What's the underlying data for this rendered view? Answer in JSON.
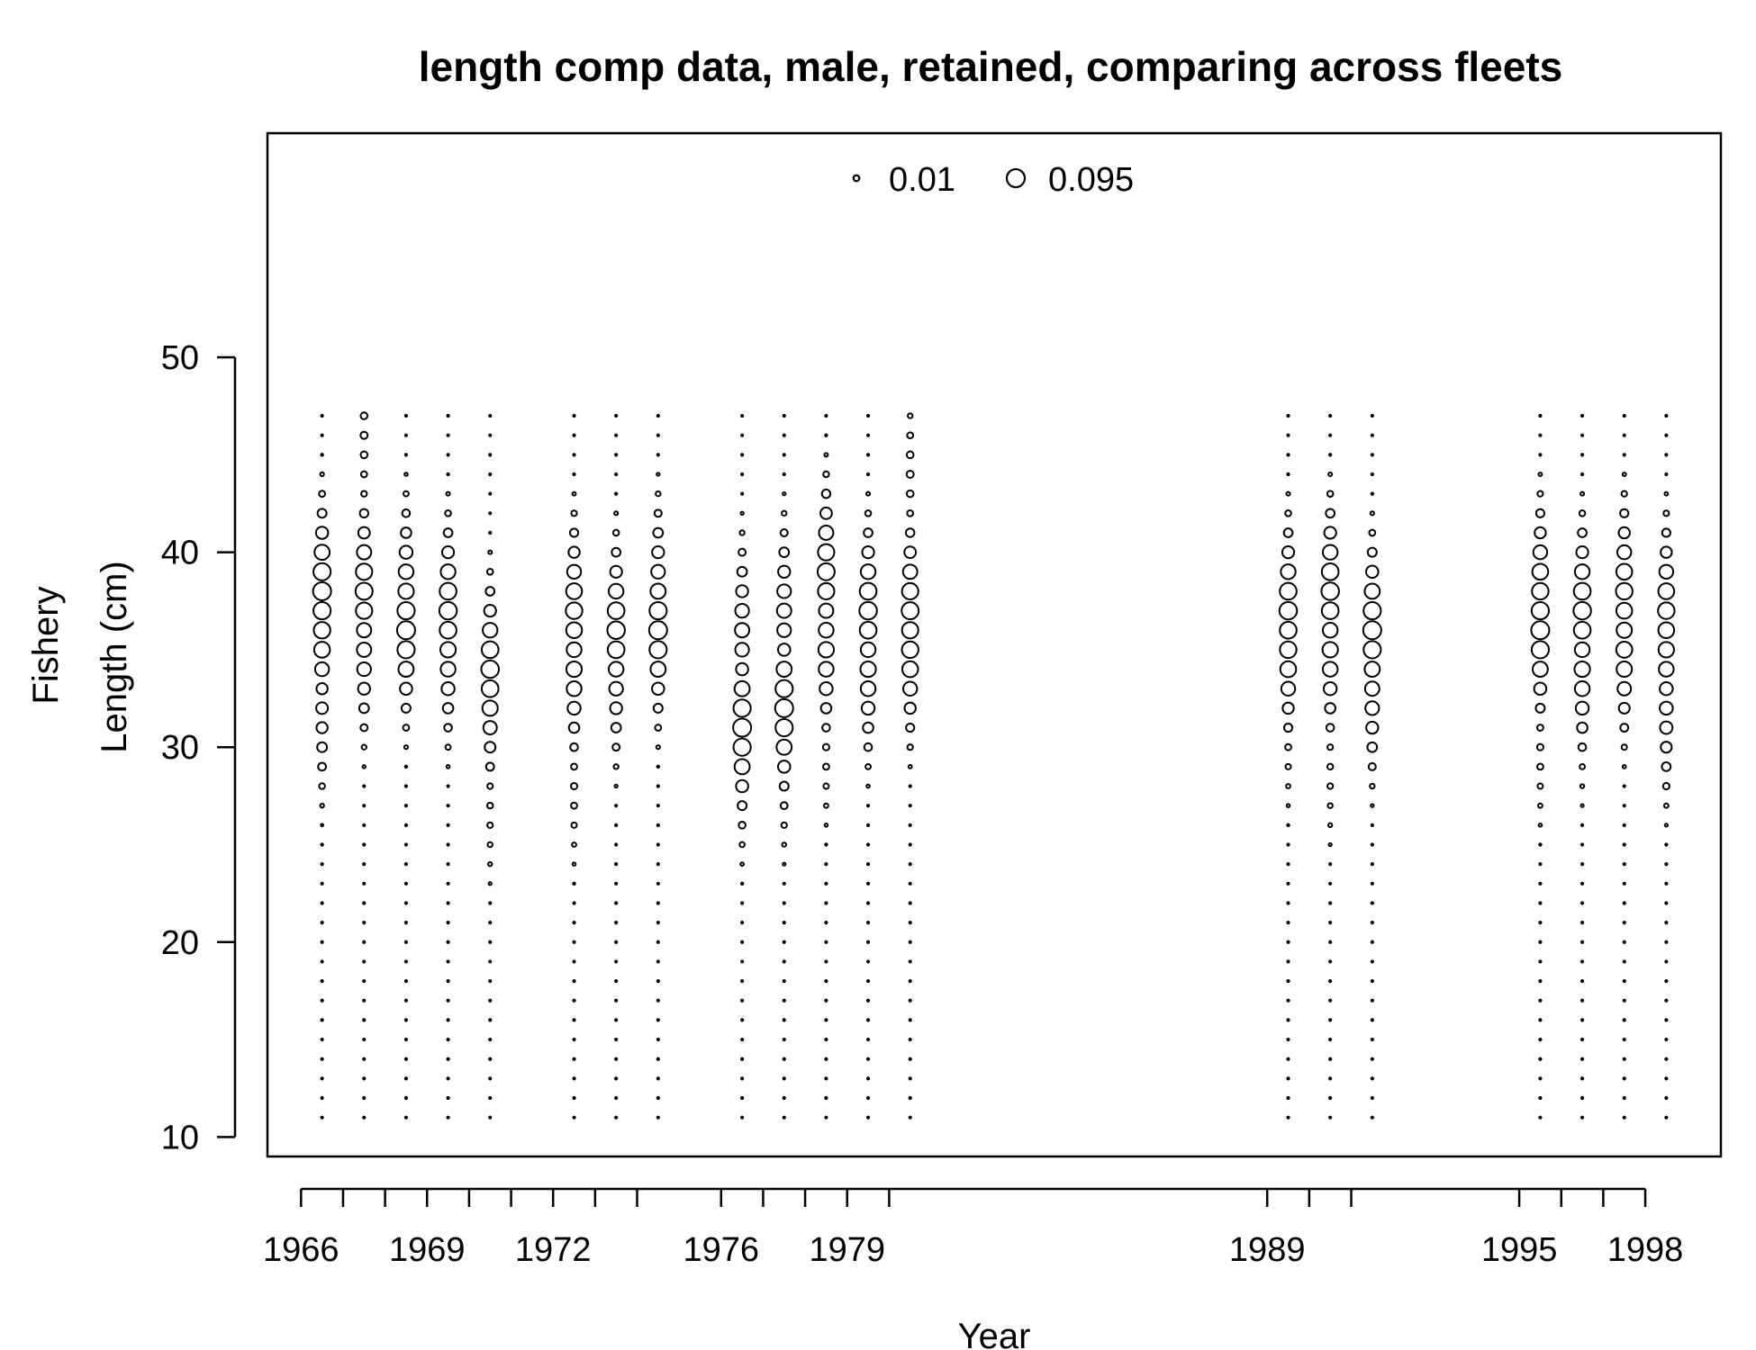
{
  "chart_data": {
    "type": "scatter",
    "subtype": "bubble",
    "title": "length comp data, male, retained, comparing across fleets",
    "xlabel": "Year",
    "ylabel_lines": [
      "Fishery",
      "Length (cm)"
    ],
    "xlim": [
      1965.2,
      1999.8
    ],
    "ylim": [
      9,
      61.5
    ],
    "y_ticks": [
      10,
      20,
      30,
      40,
      50
    ],
    "x_ticks": [
      1966,
      1967,
      1968,
      1969,
      1970,
      1971,
      1972,
      1973,
      1974,
      1976,
      1977,
      1978,
      1979,
      1980,
      1989,
      1990,
      1991,
      1995,
      1996,
      1997,
      1998
    ],
    "x_tick_labels": [
      "1966",
      "1969",
      "1972",
      "1976",
      "1979",
      "1989",
      "1995",
      "1998"
    ],
    "legend": {
      "placement": "top-center",
      "entries": [
        {
          "label": "0.01",
          "value": 0.01
        },
        {
          "label": "0.095",
          "value": 0.095
        }
      ]
    },
    "length_bins": {
      "from": 11,
      "to": 47,
      "step": 1
    },
    "series": [
      {
        "year": 1966.5,
        "peaks": [
          [
            38,
            0.095
          ],
          [
            36,
            0.08
          ],
          [
            32,
            0.04
          ]
        ]
      },
      {
        "year": 1967.5,
        "peaks": [
          [
            38,
            0.085
          ],
          [
            35,
            0.06
          ],
          [
            46,
            0.015
          ]
        ]
      },
      {
        "year": 1968.5,
        "peaks": [
          [
            36,
            0.095
          ],
          [
            38,
            0.07
          ]
        ]
      },
      {
        "year": 1969.5,
        "peaks": [
          [
            37,
            0.09
          ],
          [
            35,
            0.07
          ]
        ]
      },
      {
        "year": 1970.5,
        "peaks": [
          [
            34,
            0.09
          ],
          [
            33,
            0.075
          ],
          [
            27,
            0.01
          ]
        ]
      },
      {
        "year": 1972.5,
        "peaks": [
          [
            37,
            0.08
          ],
          [
            34,
            0.07
          ],
          [
            28,
            0.012
          ]
        ]
      },
      {
        "year": 1973.5,
        "peaks": [
          [
            36,
            0.09
          ],
          [
            34,
            0.06
          ]
        ]
      },
      {
        "year": 1974.5,
        "peaks": [
          [
            36,
            0.095
          ],
          [
            38,
            0.06
          ]
        ]
      },
      {
        "year": 1976.5,
        "peaks": [
          [
            31,
            0.095
          ],
          [
            36,
            0.06
          ],
          [
            29,
            0.03
          ]
        ]
      },
      {
        "year": 1977.5,
        "peaks": [
          [
            32,
            0.095
          ],
          [
            37,
            0.06
          ],
          [
            29,
            0.02
          ]
        ]
      },
      {
        "year": 1978.5,
        "peaks": [
          [
            39,
            0.085
          ],
          [
            35,
            0.07
          ],
          [
            30,
            0.012
          ]
        ]
      },
      {
        "year": 1979.5,
        "peaks": [
          [
            37,
            0.09
          ],
          [
            34,
            0.07
          ]
        ]
      },
      {
        "year": 1980.5,
        "peaks": [
          [
            37,
            0.085
          ],
          [
            35,
            0.08
          ],
          [
            44,
            0.015
          ]
        ]
      },
      {
        "year": 1989.5,
        "peaks": [
          [
            37,
            0.09
          ],
          [
            35,
            0.08
          ],
          [
            31,
            0.012
          ]
        ]
      },
      {
        "year": 1990.5,
        "peaks": [
          [
            38,
            0.09
          ],
          [
            35,
            0.07
          ],
          [
            29,
            0.01
          ]
        ]
      },
      {
        "year": 1991.5,
        "peaks": [
          [
            36,
            0.095
          ],
          [
            33,
            0.06
          ]
        ]
      },
      {
        "year": 1995.5,
        "peaks": [
          [
            36,
            0.095
          ],
          [
            38,
            0.08
          ],
          [
            30,
            0.012
          ]
        ]
      },
      {
        "year": 1996.5,
        "peaks": [
          [
            37,
            0.09
          ],
          [
            34,
            0.07
          ],
          [
            31,
            0.01
          ]
        ]
      },
      {
        "year": 1997.5,
        "peaks": [
          [
            38,
            0.08
          ],
          [
            35,
            0.075
          ]
        ]
      },
      {
        "year": 1998.5,
        "peaks": [
          [
            37,
            0.08
          ],
          [
            35,
            0.07
          ],
          [
            32,
            0.05
          ],
          [
            30,
            0.01
          ]
        ]
      }
    ]
  }
}
